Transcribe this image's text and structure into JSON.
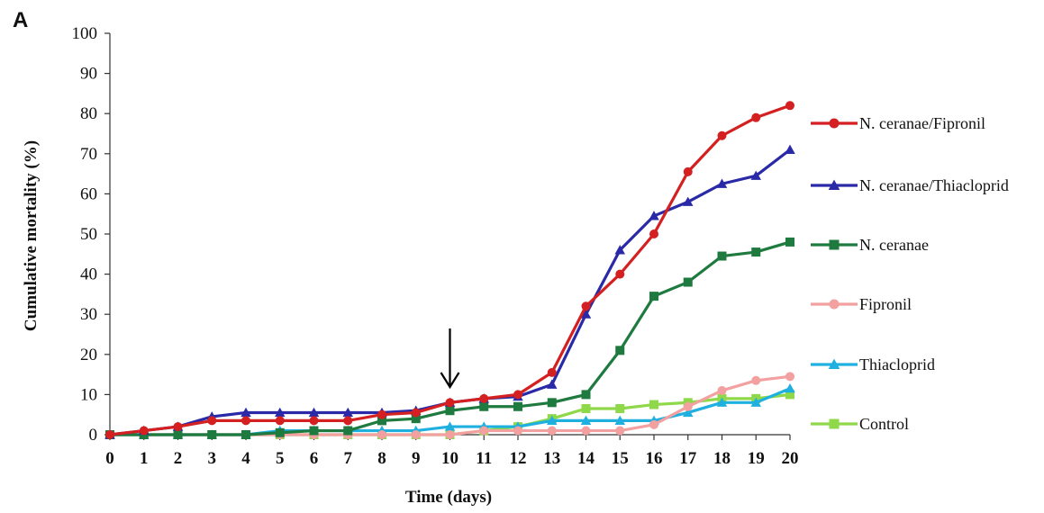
{
  "panel_label": "A",
  "chart_data": {
    "type": "line",
    "xlabel": "Time (days)",
    "ylabel": "Cumulative mortality (%)",
    "ylim": [
      0,
      100
    ],
    "yticks": [
      0,
      10,
      20,
      30,
      40,
      50,
      60,
      70,
      80,
      90,
      100
    ],
    "x": [
      0,
      1,
      2,
      3,
      4,
      5,
      6,
      7,
      8,
      9,
      10,
      11,
      12,
      13,
      14,
      15,
      16,
      17,
      18,
      19,
      20
    ],
    "grid": false,
    "legend_position": "right",
    "annotation": {
      "type": "arrow",
      "x": 10,
      "direction": "down"
    },
    "series": [
      {
        "name": "N. ceranae/Fipronil",
        "color": "#d42020",
        "marker": "circle",
        "values": [
          0,
          1,
          2,
          3.5,
          3.5,
          3.5,
          3.5,
          3.5,
          5,
          5.5,
          8,
          9,
          10,
          15.5,
          32,
          40,
          50,
          65.5,
          74.5,
          79,
          82
        ]
      },
      {
        "name": "N. ceranae/Thiacloprid",
        "color": "#2a2aa8",
        "marker": "triangle",
        "values": [
          0,
          1,
          2,
          4.5,
          5.5,
          5.5,
          5.5,
          5.5,
          5.5,
          6,
          8,
          9,
          9.5,
          12.5,
          30,
          46,
          54.5,
          58,
          62.5,
          64.5,
          71
        ]
      },
      {
        "name": "N. ceranae",
        "color": "#1f7a40",
        "marker": "square",
        "values": [
          0,
          0,
          0,
          0,
          0,
          0.5,
          1,
          1,
          3.5,
          4,
          6,
          7,
          7,
          8,
          10,
          21,
          34.5,
          38,
          44.5,
          45.5,
          48
        ]
      },
      {
        "name": "Fipronil",
        "color": "#f2a0a0",
        "marker": "circle",
        "values": [
          0,
          0,
          0,
          0,
          0,
          0,
          0,
          0,
          0,
          0,
          0,
          1,
          1,
          1,
          1,
          1,
          2.5,
          7,
          11,
          13.5,
          14.5
        ]
      },
      {
        "name": "Thiacloprid",
        "color": "#1fb0e0",
        "marker": "triangle",
        "values": [
          0,
          0,
          0,
          0,
          0,
          1,
          1,
          1,
          1,
          1,
          2,
          2,
          2,
          3.5,
          3.5,
          3.5,
          3.5,
          5.5,
          8,
          8,
          11.5
        ]
      },
      {
        "name": "Control",
        "color": "#8fd84a",
        "marker": "square",
        "values": [
          0,
          0,
          0,
          0,
          0,
          0,
          0,
          0,
          0,
          0,
          0,
          1,
          2,
          4,
          6.5,
          6.5,
          7.5,
          8,
          9,
          9,
          10
        ]
      }
    ]
  }
}
